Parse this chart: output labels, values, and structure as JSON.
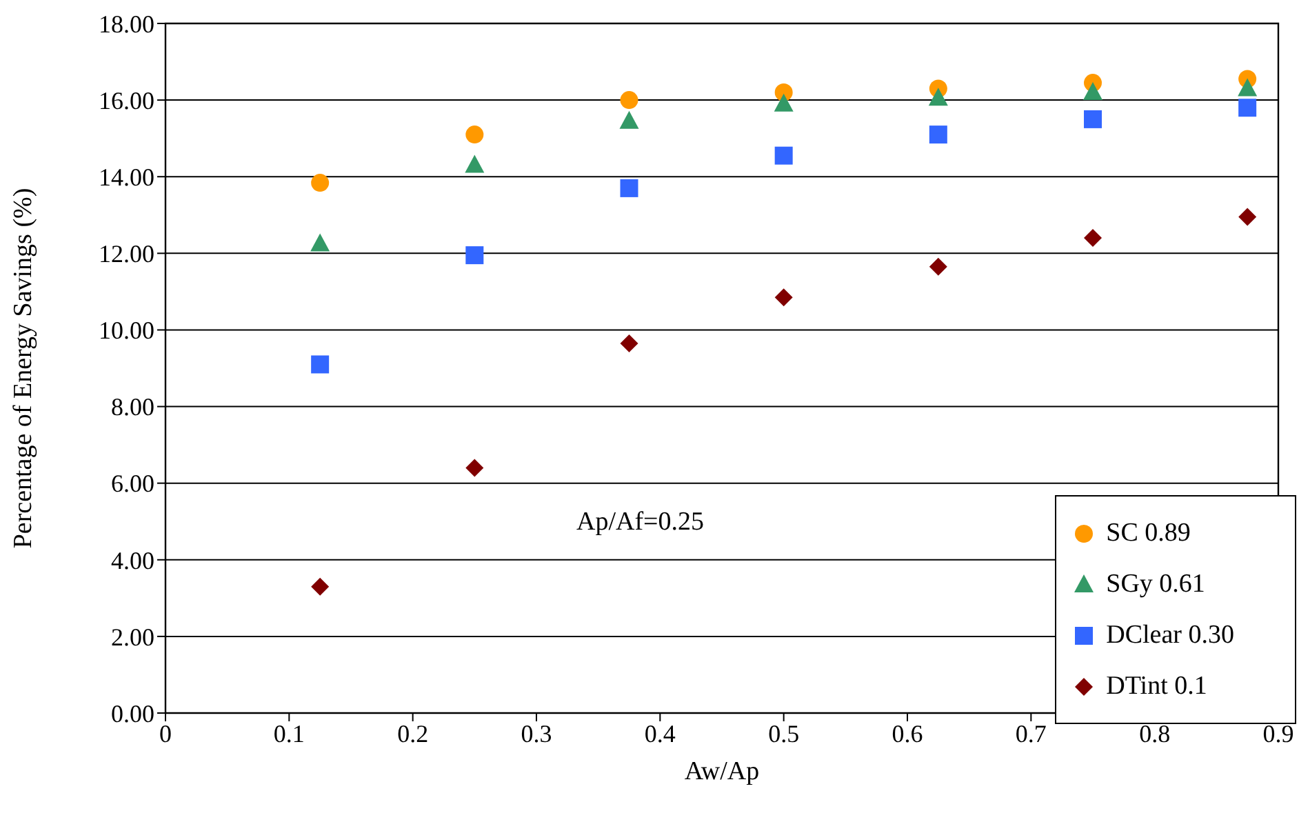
{
  "chart_data": {
    "type": "scatter",
    "xlabel": "Aw/Ap",
    "ylabel": "Percentage of  Energy Savings  (%)",
    "annotations": [
      "Ap/Af=0.25"
    ],
    "x": [
      0.125,
      0.25,
      0.375,
      0.5,
      0.625,
      0.75,
      0.875
    ],
    "series": [
      {
        "name": "SC 0.89",
        "color": "#ff9900",
        "marker": "circle",
        "values": [
          13.84,
          15.1,
          16.0,
          16.2,
          16.3,
          16.45,
          16.55
        ]
      },
      {
        "name": "SGy 0.61",
        "color": "#339966",
        "marker": "triangle",
        "values": [
          12.25,
          14.3,
          15.45,
          15.9,
          16.05,
          16.2,
          16.3
        ]
      },
      {
        "name": "DClear 0.30",
        "color": "#3366ff",
        "marker": "square",
        "values": [
          9.1,
          11.95,
          13.7,
          14.55,
          15.1,
          15.5,
          15.8
        ]
      },
      {
        "name": "DTint 0.1",
        "color": "#800000",
        "marker": "diamond",
        "values": [
          3.3,
          6.4,
          9.65,
          10.85,
          11.65,
          12.4,
          12.95
        ]
      }
    ],
    "xlim": [
      0,
      0.9
    ],
    "xticks": [
      0,
      0.1,
      0.2,
      0.3,
      0.4,
      0.5,
      0.6,
      0.7,
      0.8,
      0.9
    ],
    "ylim": [
      0,
      18
    ],
    "yticks": [
      {
        "value": 0,
        "label": "0.00"
      },
      {
        "value": 2,
        "label": "2.00"
      },
      {
        "value": 4,
        "label": "4.00"
      },
      {
        "value": 6,
        "label": "6.00"
      },
      {
        "value": 8,
        "label": "8.00"
      },
      {
        "value": 10,
        "label": "10.00"
      },
      {
        "value": 12,
        "label": "12.00"
      },
      {
        "value": 14,
        "label": "14.00"
      },
      {
        "value": 16,
        "label": "16.00"
      },
      {
        "value": 18,
        "label": "18.00"
      }
    ],
    "grid": "y",
    "legend": "bottom right"
  }
}
